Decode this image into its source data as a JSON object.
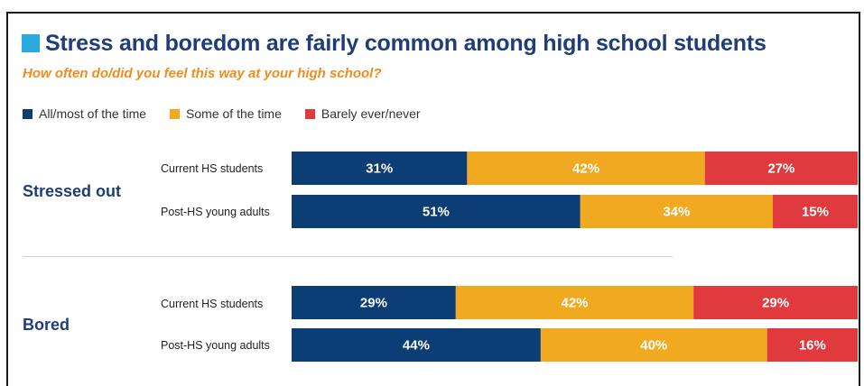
{
  "colors": {
    "title_mark": "#2aa9df",
    "title": "#1f3d7a",
    "subtitle": "#f08c1e",
    "group_label": "#1f3d7a"
  },
  "chart_data": {
    "type": "bar",
    "orientation": "horizontal",
    "stacked": true,
    "title": "Stress and boredom are fairly common among high school students",
    "subtitle": "How often do/did you feel this way at your high school?",
    "xlim": [
      0,
      100
    ],
    "legend_position": "top-left",
    "series": [
      {
        "name": "All/most of the time",
        "color": "#0d3d75"
      },
      {
        "name": "Some of the time",
        "color": "#f2a922"
      },
      {
        "name": "Barely ever/never",
        "color": "#e03a3e"
      }
    ],
    "groups": [
      {
        "label": "Stressed out",
        "rows": [
          {
            "label": "Current HS students",
            "values": [
              31,
              42,
              27
            ]
          },
          {
            "label": "Post-HS young adults",
            "values": [
              51,
              34,
              15
            ]
          }
        ]
      },
      {
        "label": "Bored",
        "rows": [
          {
            "label": "Current HS students",
            "values": [
              29,
              42,
              29
            ]
          },
          {
            "label": "Post-HS young adults",
            "values": [
              44,
              40,
              16
            ]
          }
        ]
      }
    ]
  }
}
